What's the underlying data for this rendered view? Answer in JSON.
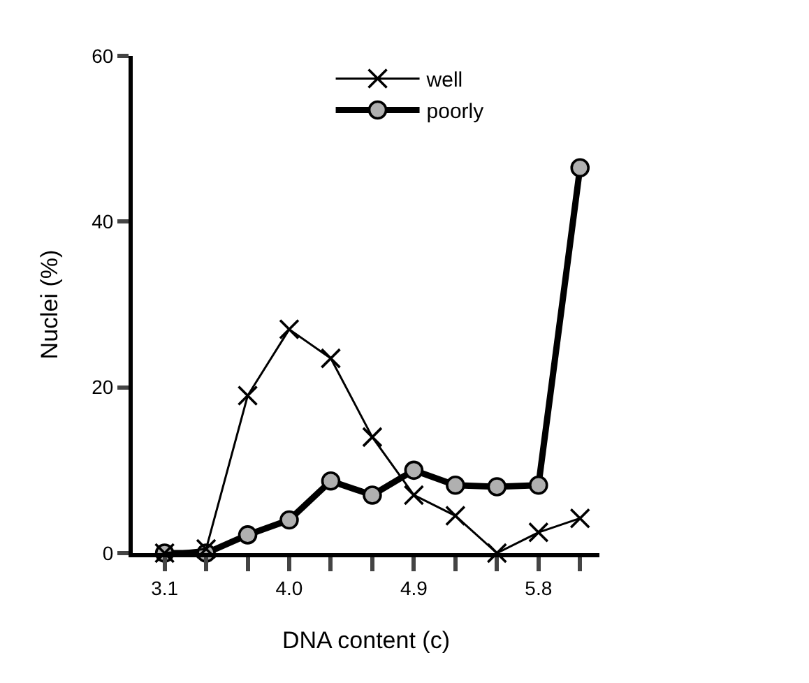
{
  "chart_data": {
    "type": "line",
    "xlabel": "DNA content (c)",
    "ylabel": "Nuclei (%)",
    "x": [
      3.1,
      3.4,
      3.7,
      4.0,
      4.3,
      4.6,
      4.9,
      5.2,
      5.5,
      5.8,
      6.1
    ],
    "xlim": [
      2.87,
      6.24
    ],
    "xticks": [
      3.1,
      {
        "value": 3.4,
        "label": null
      },
      {
        "value": 3.7,
        "label": null
      },
      "4.0",
      {
        "value": 4.3,
        "label": null
      },
      {
        "value": 4.6,
        "label": null
      },
      4.9,
      {
        "value": 5.2,
        "label": null
      },
      {
        "value": 5.5,
        "label": null
      },
      5.8,
      {
        "value": 6.1,
        "label": null
      }
    ],
    "ylim": [
      0,
      60
    ],
    "yticks": [
      0,
      20,
      40,
      60
    ],
    "grid": false,
    "legend": "top",
    "series": [
      {
        "name": "well",
        "color": "#000000",
        "marker": "cross",
        "values": [
          0,
          0.5,
          19,
          27,
          23.5,
          14,
          7,
          4.5,
          0,
          2.5,
          4.2
        ]
      },
      {
        "name": "poorly",
        "color": "#000000",
        "marker": "circle",
        "values": [
          0,
          0,
          2.2,
          4,
          8.7,
          7,
          10,
          8.2,
          8,
          8.2,
          46.5
        ]
      }
    ]
  }
}
